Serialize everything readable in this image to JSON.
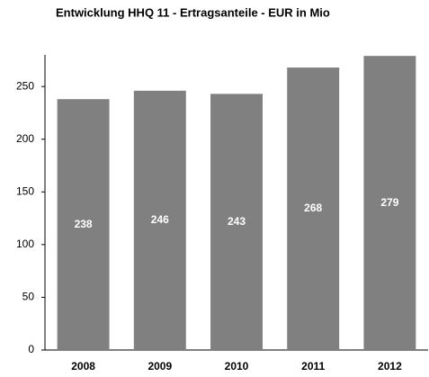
{
  "chart_data": {
    "type": "bar",
    "title": "Entwicklung HHQ 11 - Ertragsanteile - EUR in Mio",
    "categories": [
      "2008",
      "2009",
      "2010",
      "2011",
      "2012"
    ],
    "values": [
      238,
      246,
      243,
      268,
      279
    ],
    "color": "#808080",
    "ylim": [
      0,
      280
    ],
    "yticks": [
      0,
      50,
      100,
      150,
      200,
      250
    ],
    "grid": false
  }
}
